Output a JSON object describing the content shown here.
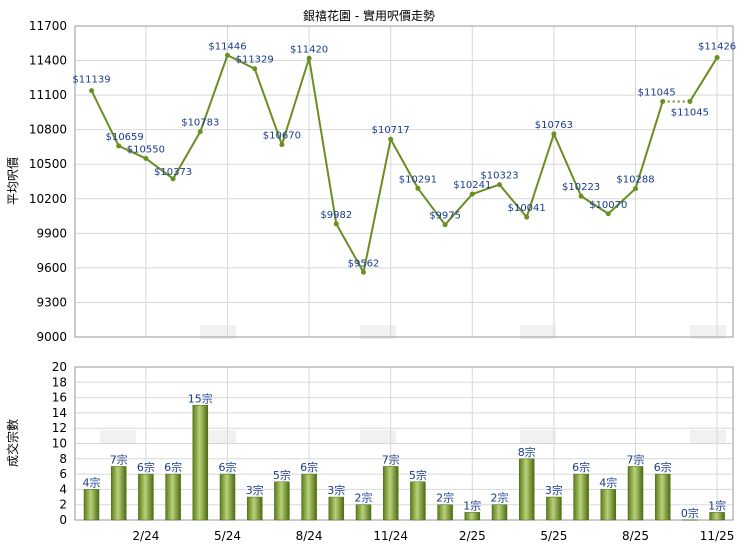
{
  "chart_data": [
    {
      "type": "line",
      "title": "銀禧花園 - 實用呎價走勢",
      "ylabel": "平均呎價",
      "ylim": [
        9000,
        11700
      ],
      "yticks": [
        9000,
        9300,
        9600,
        9900,
        10200,
        10500,
        10800,
        11100,
        11400,
        11700
      ],
      "xticks": [
        "2/24",
        "5/24",
        "8/24",
        "11/24",
        "2/25",
        "5/25",
        "8/25",
        "11/25"
      ],
      "color": "#6b8e23",
      "values": [
        11139,
        10659,
        10550,
        10373,
        10783,
        11446,
        11329,
        10670,
        11420,
        9982,
        9562,
        10717,
        10291,
        9975,
        10241,
        10323,
        10041,
        10763,
        10223,
        10070,
        10288,
        11045,
        11045,
        11426
      ],
      "labels": [
        "$11139",
        "$10659",
        "$10550",
        "$10373",
        "$10783",
        "$11446",
        "$11329",
        "$10670",
        "$11420",
        "$9982",
        "$9562",
        "$10717",
        "$10291",
        "$9975",
        "$10241",
        "$10323",
        "$10041",
        "$10763",
        "$10223",
        "$10070",
        "$10288",
        "$11045",
        "$11045",
        "$11426"
      ],
      "dotted_segments": [
        [
          21,
          22
        ]
      ],
      "grid": true
    },
    {
      "type": "bar",
      "ylabel": "成交宗數",
      "ylim": [
        0,
        20
      ],
      "yticks": [
        0,
        2,
        4,
        6,
        8,
        10,
        12,
        14,
        16,
        18,
        20
      ],
      "xticks": [
        "2/24",
        "5/24",
        "8/24",
        "11/24",
        "2/25",
        "5/25",
        "8/25",
        "11/25"
      ],
      "values": [
        4,
        7,
        6,
        6,
        15,
        6,
        3,
        5,
        6,
        3,
        2,
        7,
        5,
        2,
        1,
        2,
        8,
        3,
        6,
        4,
        7,
        6,
        0,
        1
      ],
      "labels": [
        "4宗",
        "7宗",
        "6宗",
        "6宗",
        "15宗",
        "6宗",
        "3宗",
        "5宗",
        "6宗",
        "3宗",
        "2宗",
        "7宗",
        "5宗",
        "2宗",
        "1宗",
        "2宗",
        "8宗",
        "3宗",
        "6宗",
        "4宗",
        "7宗",
        "6宗",
        "0宗",
        "1宗"
      ],
      "grid": true
    }
  ]
}
